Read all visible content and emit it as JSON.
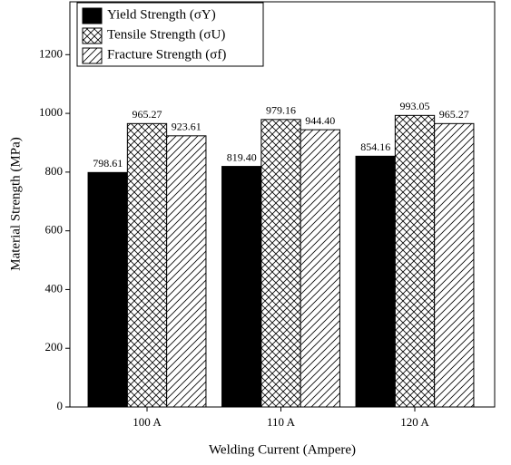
{
  "chart_data": {
    "type": "bar",
    "x_label": "Welding Current (Ampere)",
    "y_label": "Material Strength (MPa)",
    "categories": [
      "100 A",
      "110 A",
      "120 A"
    ],
    "series": [
      {
        "name": "Yield Strength (σY)",
        "color": "#000000",
        "pattern": "solid",
        "values": [
          798.61,
          819.4,
          854.16
        ],
        "value_labels": [
          "798.61",
          "819.40",
          "854.16"
        ]
      },
      {
        "name": "Tensile Strength (σU)",
        "color": "#000000",
        "pattern": "crosshatch",
        "values": [
          965.27,
          979.16,
          993.05
        ],
        "value_labels": [
          "965.27",
          "979.16",
          "993.05"
        ]
      },
      {
        "name": "Fracture Strength (σf)",
        "color": "#000000",
        "pattern": "diagonal",
        "values": [
          923.61,
          944.4,
          965.27
        ],
        "value_labels": [
          "923.61",
          "944.40",
          "965.27"
        ]
      }
    ],
    "ylim": [
      0,
      1380
    ],
    "yticks": [
      0,
      200,
      400,
      600,
      800,
      1000,
      1200
    ],
    "legend": "top-left"
  }
}
